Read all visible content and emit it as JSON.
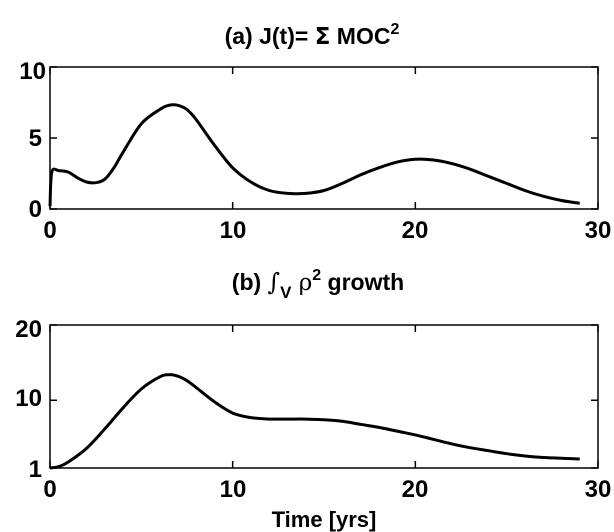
{
  "chart_data": [
    {
      "type": "line",
      "title_parts": {
        "prefix": "(a) J(t)= ",
        "symbol": "Σ",
        "body": " MOC",
        "sup": "2"
      },
      "xlabel": "",
      "ylabel": "",
      "xlim": [
        0,
        30
      ],
      "ylim": [
        0,
        10
      ],
      "x_ticks": [
        "0",
        "10",
        "20",
        "30"
      ],
      "y_ticks": [
        "0",
        "5",
        "10"
      ],
      "grid": false,
      "series": [
        {
          "x": [
            0,
            0.1,
            0.5,
            1,
            1.5,
            2,
            2.5,
            3,
            3.5,
            4,
            5,
            6,
            6.5,
            7,
            7.5,
            8,
            9,
            10,
            11,
            12,
            13,
            14,
            15,
            16,
            17,
            18,
            19,
            20,
            21,
            22,
            23,
            24,
            25,
            26,
            27,
            28,
            29
          ],
          "y": [
            0.2,
            2.6,
            2.7,
            2.6,
            2.2,
            1.9,
            1.85,
            2.1,
            2.9,
            4.0,
            6.0,
            7.0,
            7.3,
            7.3,
            7.0,
            6.3,
            4.5,
            2.9,
            1.9,
            1.3,
            1.1,
            1.1,
            1.3,
            1.8,
            2.4,
            2.9,
            3.3,
            3.5,
            3.45,
            3.2,
            2.8,
            2.3,
            1.8,
            1.3,
            0.9,
            0.6,
            0.4
          ]
        }
      ]
    },
    {
      "type": "line",
      "title_parts": {
        "prefix": "(b) ",
        "symbol": "∫",
        "sub": "V",
        "rho": " ρ",
        "sup": "2",
        "body": " growth"
      },
      "xlabel": "Time [yrs]",
      "ylabel": "",
      "xlim": [
        0,
        30
      ],
      "ylim": [
        1,
        20
      ],
      "x_ticks": [
        "0",
        "10",
        "20",
        "30"
      ],
      "y_ticks": [
        "1",
        "10",
        "20"
      ],
      "grid": false,
      "series": [
        {
          "x": [
            0,
            0.5,
            1,
            2,
            3,
            4,
            5,
            6,
            6.5,
            7,
            7.5,
            8,
            9,
            10,
            11,
            12,
            13,
            14,
            15,
            16,
            17,
            18,
            19,
            20,
            21,
            22,
            23,
            24,
            25,
            26,
            27,
            28,
            29
          ],
          "y": [
            1,
            1.2,
            1.8,
            3.6,
            6.2,
            9.0,
            11.5,
            13.1,
            13.4,
            13.2,
            12.6,
            11.7,
            9.8,
            8.3,
            7.7,
            7.5,
            7.5,
            7.5,
            7.4,
            7.2,
            6.8,
            6.4,
            5.9,
            5.4,
            4.8,
            4.2,
            3.7,
            3.3,
            2.9,
            2.6,
            2.4,
            2.3,
            2.2
          ]
        }
      ]
    }
  ]
}
